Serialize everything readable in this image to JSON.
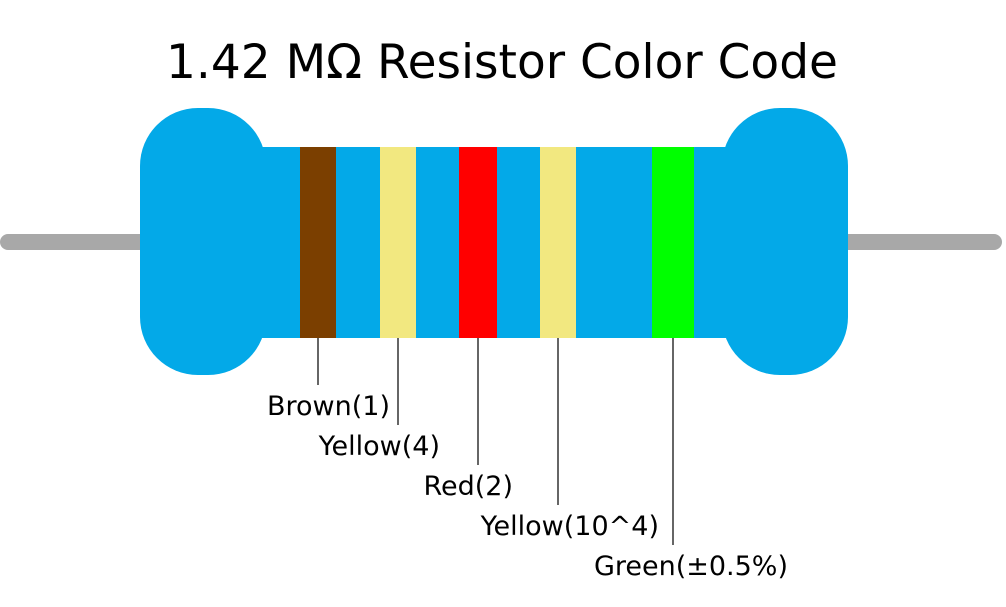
{
  "title": "1.42 MΩ Resistor Color Code",
  "bands": [
    {
      "label": "Brown(1)",
      "color": "#7b3f00"
    },
    {
      "label": "Yellow(4)",
      "color": "#f2e880"
    },
    {
      "label": "Red(2)",
      "color": "#ff0000"
    },
    {
      "label": "Yellow(10^4)",
      "color": "#f2e880"
    },
    {
      "label": "Green(±0.5%)",
      "color": "#00ff00"
    }
  ]
}
